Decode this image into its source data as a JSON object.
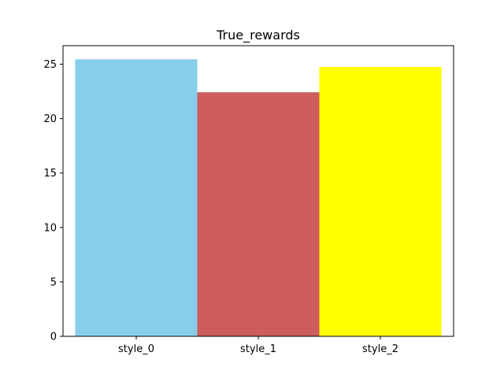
{
  "chart_data": {
    "type": "bar",
    "title": "True_rewards",
    "xlabel": "",
    "ylabel": "",
    "categories": [
      "style_0",
      "style_1",
      "style_2"
    ],
    "values": [
      25.45,
      22.42,
      24.75
    ],
    "colors": [
      "#87ceeb",
      "#cd5c5c",
      "#ffff00"
    ],
    "ylim": [
      0,
      26.7
    ],
    "yticks": [
      0,
      5,
      10,
      15,
      20,
      25
    ],
    "grid": false,
    "legend": "none"
  }
}
